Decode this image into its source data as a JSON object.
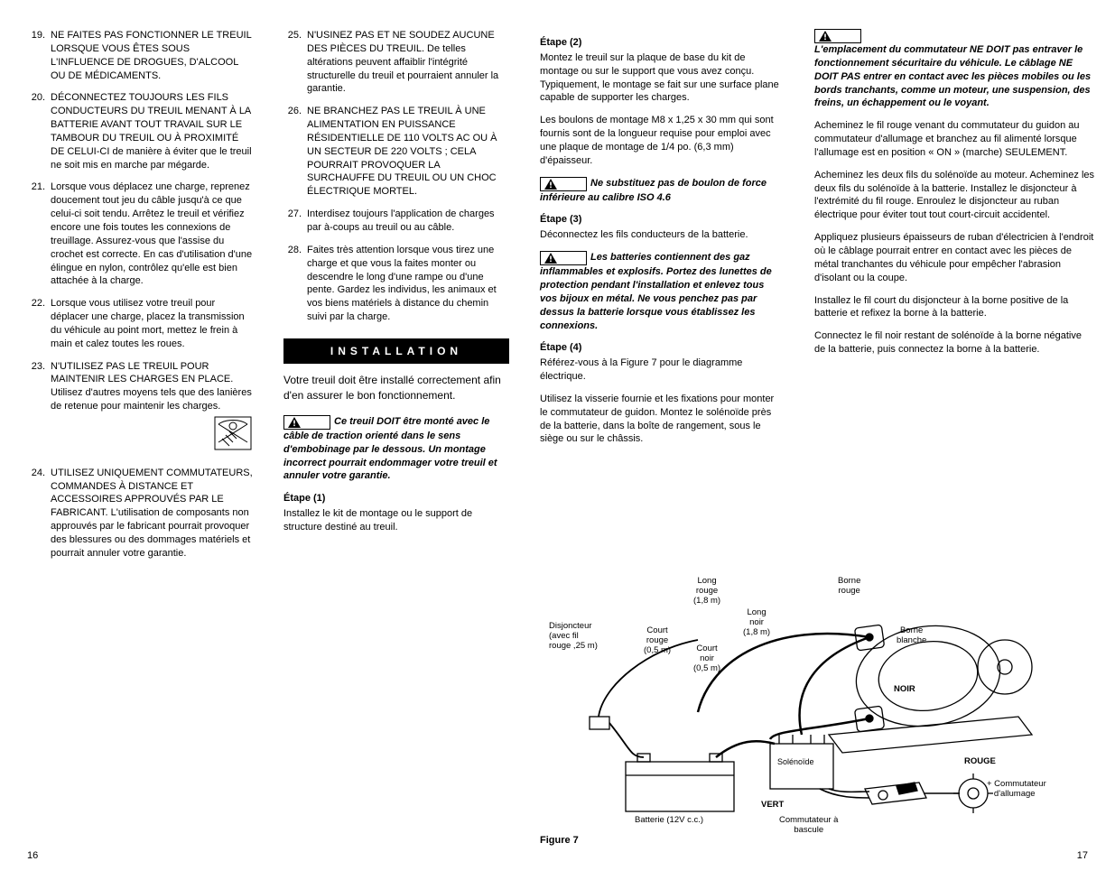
{
  "col1": {
    "items": [
      {
        "n": "19.",
        "t": "NE FAITES PAS FONCTIONNER LE TREUIL LORSQUE VOUS ÊTES SOUS L'INFLUENCE DE DROGUES, D'ALCOOL OU DE MÉDICAMENTS."
      },
      {
        "n": "20.",
        "t": "DÉCONNECTEZ TOUJOURS LES FILS CONDUCTEURS DU TREUIL MENANT À LA BATTERIE AVANT TOUT TRAVAIL SUR LE TAMBOUR DU TREUIL OU À PROXIMITÉ DE CELUI-CI de manière à éviter que le treuil ne soit mis en marche par mégarde."
      },
      {
        "n": "21.",
        "t": "Lorsque vous déplacez une charge, reprenez doucement tout jeu du câble jusqu'à ce que celui-ci soit tendu. Arrêtez le treuil et vérifiez encore une fois toutes les connexions de treuillage. Assurez-vous que l'assise du crochet est correcte. En cas d'utilisation d'une élingue en nylon, contrôlez qu'elle est bien attachée à la charge."
      },
      {
        "n": "22.",
        "t": "Lorsque vous utilisez votre  treuil pour déplacer une   charge, placez la transmission  du véhicule au point mort, mettez le frein à main et calez toutes les roues."
      },
      {
        "n": "23.",
        "t": "N'UTILISEZ PAS LE TREUIL POUR MAINTENIR LES CHARGES EN PLACE. Utilisez d'autres moyens tels que des lanières de retenue pour maintenir les charges."
      },
      {
        "n": "24.",
        "t": "UTILISEZ UNIQUEMENT COMMUTATEURS, COMMANDES À DISTANCE ET ACCESSOIRES APPROUVÉS PAR LE FABRICANT. L'utilisation de composants non approuvés par le fabricant pourrait provoquer des blessures ou des dommages matériels et pourrait annuler votre garantie."
      }
    ]
  },
  "col2": {
    "items": [
      {
        "n": "25.",
        "t": "N'USINEZ PAS ET NE SOUDEZ AUCUNE DES PIÈCES DU TREUIL. De telles altérations peuvent affaiblir l'intégrité structurelle du treuil et pourraient annuler la garantie."
      },
      {
        "n": "26.",
        "t": "NE BRANCHEZ PAS LE TREUIL À UNE ALIMENTATION EN PUISSANCE RÉSIDENTIELLE DE 110 VOLTS AC OU À UN SECTEUR DE 220 VOLTS ; CELA POURRAIT PROVOQUER LA SURCHAUFFE DU TREUIL OU UN CHOC ÉLECTRIQUE MORTEL."
      },
      {
        "n": "27.",
        "t": "Interdisez toujours l'application de charges par à-coups au treuil ou au câble."
      },
      {
        "n": "28.",
        "t": "Faites très attention lorsque vous tirez une charge et que vous la faites monter ou descendre le long d'une rampe ou d'une pente. Gardez les individus, les animaux et vos biens matériels à distance du chemin suivi par la charge."
      }
    ],
    "section_title": "INSTALLATION",
    "intro": "Votre treuil doit être installé correctement afin d'en assurer le bon fonctionnement.",
    "warn1": "Ce treuil DOIT être monté avec le câble de traction orienté dans le sens d'embobinage par le dessous. Un montage incorrect pourrait endommager votre treuil et annuler votre garantie.",
    "step1_h": "Étape (1)",
    "step1": "Installez le kit de montage ou le support de structure destiné au treuil."
  },
  "col3": {
    "step2_h": "Étape (2)",
    "step2a": "Montez le treuil sur la plaque de base du kit de montage ou sur le support que vous avez conçu. Typiquement, le montage se fait sur une surface plane capable de supporter les charges.",
    "step2b": "Les boulons de montage M8 x 1,25 x 30 mm qui sont fournis sont de la longueur requise pour emploi avec une plaque de montage de 1/4 po. (6,3 mm) d'épaisseur.",
    "warn2": "Ne substituez pas de boulon de force inférieure au calibre ISO 4.6",
    "step3_h": "Étape (3)",
    "step3": "Déconnectez les fils conducteurs de la batterie.",
    "warn3": "Les batteries contiennent des gaz inflammables et explosifs. Portez des lunettes de protection pendant l'installation et enlevez tous vos bijoux en métal. Ne vous penchez pas par dessus la batterie lorsque vous établissez les connexions.",
    "step4_h": "Étape (4)",
    "step4a": "Référez-vous à la Figure 7 pour le diagramme électrique.",
    "step4b": "Utilisez la visserie fournie et les fixations pour monter le commutateur de guidon. Montez le solénoïde près de la batterie, dans la boîte de rangement, sous le siège ou sur le châssis."
  },
  "col4": {
    "warn4": "L'emplacement du commutateur NE DOIT pas entraver le fonctionnement sécuritaire du véhicule. Le câblage NE DOIT PAS entrer en contact avec les pièces mobiles ou les bords tranchants, comme un moteur, une suspension, des freins, un échappement ou le voyant.",
    "p1": "Acheminez le fil rouge venant du commutateur du guidon au commutateur d'allumage et branchez au fil alimenté lorsque l'allumage est en position « ON » (marche) SEULEMENT.",
    "p2": "Acheminez les deux fils du solénoïde au moteur. Acheminez les deux fils du solénoïde à la batterie. Installez le disjoncteur à l'extrémité du fil rouge. Enroulez le disjoncteur au ruban électrique pour éviter tout tout court-circuit accidentel.",
    "p3": "Appliquez plusieurs épaisseurs de ruban d'électricien à l'endroit où le câblage pourrait entrer en contact avec les pièces de métal tranchantes du véhicule pour empêcher l'abrasion d'isolant ou la coupe.",
    "p4": "Installez le fil court du disjoncteur à la borne positive de la batterie et refixez la borne à la batterie.",
    "p5": "Connectez le fil noir restant de solénoïde à la borne négative de la batterie, puis connectez la borne à la batterie."
  },
  "figure": {
    "caption": "Figure 7",
    "labels": {
      "long_rouge": "Long\nrouge\n(1,8 m)",
      "borne_rouge": "Borne\nrouge",
      "disjoncteur": "Disjoncteur\n(avec fil\nrouge ,25 m)",
      "long_noir": "Long\nnoir\n(1,8 m)",
      "court_rouge": "Court\nrouge\n(0,5 m)",
      "court_noir": "Court\nnoir\n(0,5 m)",
      "borne_blanche": "Borne\nblanche",
      "noir": "NOIR",
      "solenoide": "Solénoïde",
      "vert": "VERT",
      "rouge": "ROUGE",
      "batterie": "Batterie (12V c.c.)",
      "commutateur_bascule": "Commutateur à\nbascule",
      "commutateur_allumage": "+ Commutateur\n   d'allumage"
    }
  },
  "page_left": "16",
  "page_right": "17"
}
